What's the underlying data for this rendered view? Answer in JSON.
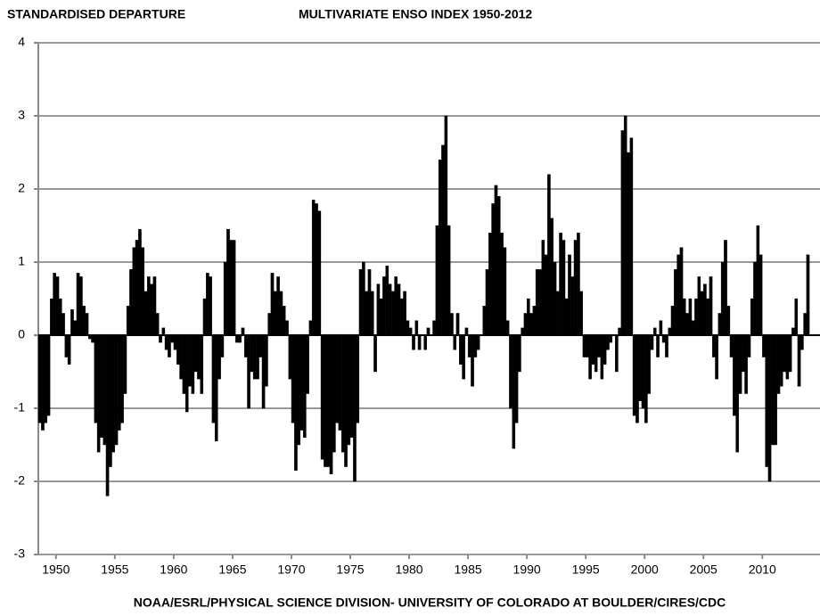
{
  "chart_data": {
    "type": "bar",
    "title": "MULTIVARIATE ENSO INDEX 1950-2012",
    "y_label": "STANDARDISED DEPARTURE",
    "source": "NOAA/ESRL/PHYSICAL SCIENCE DIVISION- UNIVERSITY OF COLORADO AT BOULDER/CIRES/CDC",
    "color": "#000000",
    "grid": true,
    "xlim": [
      1948.5,
      2014.9
    ],
    "xticks": [
      1950,
      1955,
      1960,
      1965,
      1970,
      1975,
      1980,
      1985,
      1990,
      1995,
      2000,
      2005,
      2010
    ],
    "ylim": [
      -3,
      4
    ],
    "yticks": [
      -3,
      -2,
      -1,
      0,
      1,
      2,
      3,
      4
    ],
    "x": [
      1948.5,
      1948.75,
      1949,
      1949.25,
      1949.5,
      1949.75,
      1950,
      1950.25,
      1950.5,
      1950.75,
      1951,
      1951.25,
      1951.5,
      1951.75,
      1952,
      1952.25,
      1952.5,
      1952.75,
      1953,
      1953.25,
      1953.5,
      1953.75,
      1954,
      1954.25,
      1954.5,
      1954.75,
      1955,
      1955.25,
      1955.5,
      1955.75,
      1956,
      1956.25,
      1956.5,
      1956.75,
      1957,
      1957.25,
      1957.5,
      1957.75,
      1958,
      1958.25,
      1958.5,
      1958.75,
      1959,
      1959.25,
      1959.5,
      1959.75,
      1960,
      1960.25,
      1960.5,
      1960.75,
      1961,
      1961.25,
      1961.5,
      1961.75,
      1962,
      1962.25,
      1962.5,
      1962.75,
      1963,
      1963.25,
      1963.5,
      1963.75,
      1964,
      1964.25,
      1964.5,
      1964.75,
      1965,
      1965.25,
      1965.5,
      1965.75,
      1966,
      1966.25,
      1966.5,
      1966.75,
      1967,
      1967.25,
      1967.5,
      1967.75,
      1968,
      1968.25,
      1968.5,
      1968.75,
      1969,
      1969.25,
      1969.5,
      1969.75,
      1970,
      1970.25,
      1970.5,
      1970.75,
      1971,
      1971.25,
      1971.5,
      1971.75,
      1972,
      1972.25,
      1972.5,
      1972.75,
      1973,
      1973.25,
      1973.5,
      1973.75,
      1974,
      1974.25,
      1974.5,
      1974.75,
      1975,
      1975.25,
      1975.5,
      1975.75,
      1976,
      1976.25,
      1976.5,
      1976.75,
      1977,
      1977.25,
      1977.5,
      1977.75,
      1978,
      1978.25,
      1978.5,
      1978.75,
      1979,
      1979.25,
      1979.5,
      1979.75,
      1980,
      1980.25,
      1980.5,
      1980.75,
      1981,
      1981.25,
      1981.5,
      1981.75,
      1982,
      1982.25,
      1982.5,
      1982.75,
      1983,
      1983.25,
      1983.5,
      1983.75,
      1984,
      1984.25,
      1984.5,
      1984.75,
      1985,
      1985.25,
      1985.5,
      1985.75,
      1986,
      1986.25,
      1986.5,
      1986.75,
      1987,
      1987.25,
      1987.5,
      1987.75,
      1988,
      1988.25,
      1988.5,
      1988.75,
      1989,
      1989.25,
      1989.5,
      1989.75,
      1990,
      1990.25,
      1990.5,
      1990.75,
      1991,
      1991.25,
      1991.5,
      1991.75,
      1992,
      1992.25,
      1992.5,
      1992.75,
      1993,
      1993.25,
      1993.5,
      1993.75,
      1994,
      1994.25,
      1994.5,
      1994.75,
      1995,
      1995.25,
      1995.5,
      1995.75,
      1996,
      1996.25,
      1996.5,
      1996.75,
      1997,
      1997.25,
      1997.5,
      1997.75,
      1998,
      1998.25,
      1998.5,
      1998.75,
      1999,
      1999.25,
      1999.5,
      1999.75,
      2000,
      2000.25,
      2000.5,
      2000.75,
      2001,
      2001.25,
      2001.5,
      2001.75,
      2002,
      2002.25,
      2002.5,
      2002.75,
      2003,
      2003.25,
      2003.5,
      2003.75,
      2004,
      2004.25,
      2004.5,
      2004.75,
      2005,
      2005.25,
      2005.5,
      2005.75,
      2006,
      2006.25,
      2006.5,
      2006.75,
      2007,
      2007.25,
      2007.5,
      2007.75,
      2008,
      2008.25,
      2008.5,
      2008.75,
      2009,
      2009.25,
      2009.5,
      2009.75,
      2010,
      2010.25,
      2010.5,
      2010.75,
      2011,
      2011.25,
      2011.5,
      2011.75,
      2012,
      2012.25,
      2012.5,
      2012.75,
      2013,
      2013.25,
      2013.5,
      2013.75
    ],
    "values": [
      -1.2,
      -1.3,
      -1.2,
      -1.1,
      0.5,
      0.85,
      0.8,
      0.5,
      0.3,
      -0.3,
      -0.4,
      0.35,
      0.2,
      0.85,
      0.8,
      0.4,
      0.3,
      -0.05,
      -0.1,
      -1.2,
      -1.6,
      -1.4,
      -1.5,
      -2.2,
      -1.8,
      -1.6,
      -1.5,
      -1.3,
      -1.2,
      -0.8,
      0.4,
      0.9,
      1.2,
      1.3,
      1.45,
      1.2,
      0.6,
      0.8,
      0.7,
      0.8,
      0.3,
      -0.1,
      0.1,
      -0.2,
      -0.3,
      -0.1,
      -0.2,
      -0.4,
      -0.6,
      -0.8,
      -1.05,
      -0.7,
      -0.8,
      -0.5,
      -0.6,
      -0.8,
      0.5,
      0.85,
      0.8,
      -1.2,
      -1.45,
      -0.6,
      -0.3,
      1.0,
      1.45,
      1.3,
      1.3,
      -0.1,
      -0.1,
      0.1,
      -0.3,
      -1.0,
      -0.5,
      -0.6,
      -0.6,
      -0.3,
      -1.0,
      -0.7,
      0.3,
      0.85,
      0.6,
      0.8,
      0.6,
      0.4,
      0.2,
      -0.6,
      -1.2,
      -1.85,
      -1.5,
      -1.3,
      -1.4,
      -0.8,
      0.2,
      1.85,
      1.8,
      1.7,
      -1.7,
      -1.8,
      -1.8,
      -1.9,
      -1.6,
      -1.2,
      -1.3,
      -1.6,
      -1.8,
      -1.5,
      -1.4,
      -2.0,
      -1.2,
      0.9,
      1.0,
      0.6,
      0.9,
      0.6,
      -0.5,
      0.7,
      0.5,
      0.8,
      0.95,
      0.7,
      0.6,
      0.8,
      0.7,
      0.5,
      0.6,
      0.2,
      0.1,
      -0.2,
      0.2,
      -0.2,
      0.0,
      -0.2,
      0.1,
      0.0,
      0.2,
      1.5,
      2.4,
      2.6,
      3.0,
      1.5,
      0.3,
      -0.2,
      0.3,
      -0.4,
      -0.6,
      0.1,
      -0.3,
      -0.7,
      -0.3,
      -0.2,
      0.0,
      0.4,
      0.9,
      1.4,
      1.8,
      2.05,
      1.9,
      1.4,
      1.2,
      0.2,
      -1.0,
      -1.55,
      -1.2,
      -0.5,
      0.1,
      0.3,
      0.5,
      0.3,
      0.4,
      0.9,
      0.9,
      1.3,
      1.1,
      2.2,
      1.6,
      1.0,
      0.6,
      1.4,
      1.3,
      0.5,
      1.1,
      0.8,
      1.3,
      1.4,
      0.6,
      -0.3,
      -0.3,
      -0.6,
      -0.4,
      -0.5,
      -0.3,
      -0.6,
      -0.4,
      -0.2,
      -0.1,
      0.0,
      -0.5,
      0.1,
      2.8,
      3.0,
      2.5,
      2.7,
      -1.1,
      -1.2,
      -0.9,
      -1.0,
      -1.2,
      -0.8,
      -0.2,
      0.1,
      -0.3,
      0.2,
      -0.1,
      -0.3,
      0.1,
      0.4,
      0.9,
      1.1,
      1.2,
      0.5,
      0.3,
      0.5,
      0.2,
      0.5,
      0.8,
      0.6,
      0.7,
      0.5,
      0.8,
      -0.3,
      -0.6,
      0.3,
      1.0,
      1.3,
      0.4,
      -0.3,
      -1.1,
      -1.6,
      -0.8,
      -0.5,
      -0.8,
      -0.3,
      0.5,
      1.0,
      1.5,
      1.1,
      -0.3,
      -1.8,
      -2.0,
      -1.5,
      -1.5,
      -0.8,
      -0.7,
      -0.5,
      -0.6,
      -0.5,
      0.1,
      0.5,
      -0.7,
      -0.2,
      0.3,
      1.1
    ]
  }
}
